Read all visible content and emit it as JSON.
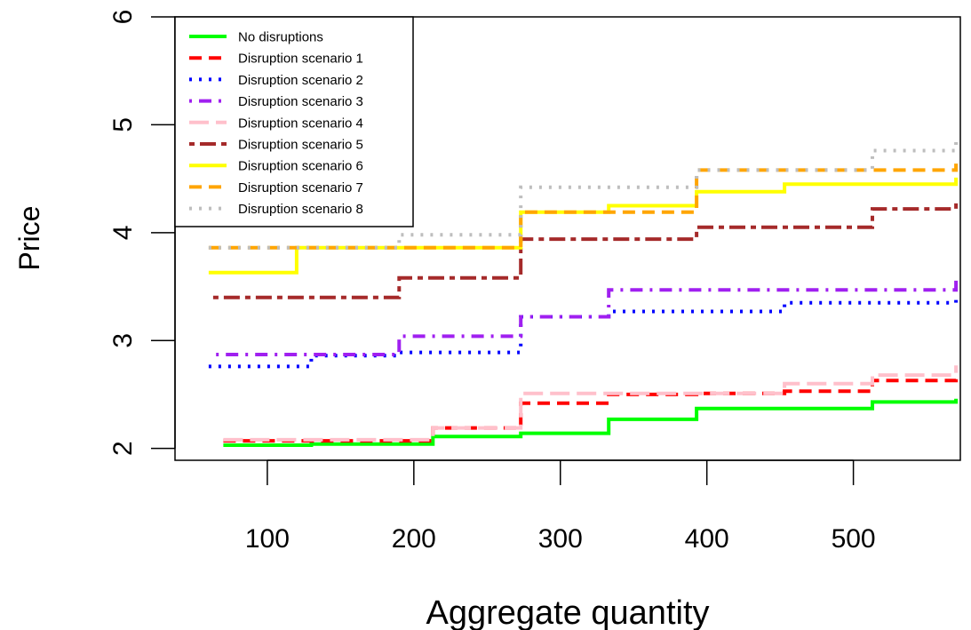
{
  "chart_data": {
    "type": "line",
    "step": true,
    "xlabel": "Aggregate quantity",
    "ylabel": "Price",
    "xlim": [
      37,
      573
    ],
    "ylim": [
      1.89,
      6.0
    ],
    "xticks": [
      100,
      200,
      300,
      400,
      500
    ],
    "yticks": [
      2,
      3,
      4,
      5,
      6
    ],
    "legend_position": "top-left",
    "series": [
      {
        "name": "No disruptions",
        "color": "#00ff00",
        "dash": "solid",
        "x": [
          70,
          130,
          213,
          273,
          333,
          393,
          513,
          570
        ],
        "y": [
          2.03,
          2.04,
          2.11,
          2.14,
          2.27,
          2.37,
          2.43,
          2.46
        ]
      },
      {
        "name": "Disruption scenario 1",
        "color": "#ff0000",
        "dash": "dashed",
        "x": [
          70,
          130,
          213,
          273,
          333,
          393,
          453,
          513,
          570
        ],
        "y": [
          2.07,
          2.07,
          2.19,
          2.42,
          2.5,
          2.51,
          2.53,
          2.63,
          2.67
        ]
      },
      {
        "name": "Disruption scenario 2",
        "color": "#0000ff",
        "dash": "dotted",
        "x": [
          60,
          130,
          190,
          273,
          333,
          453,
          570
        ],
        "y": [
          2.76,
          2.86,
          2.89,
          3.22,
          3.27,
          3.35,
          3.39
        ]
      },
      {
        "name": "Disruption scenario 3",
        "color": "#a020f0",
        "dash": "dotdash",
        "x": [
          65,
          190,
          273,
          333,
          570
        ],
        "y": [
          2.87,
          3.04,
          3.22,
          3.47,
          3.62
        ]
      },
      {
        "name": "Disruption scenario 4",
        "color": "#ffc0cb",
        "dash": "longdash",
        "x": [
          70,
          213,
          273,
          453,
          513,
          570
        ],
        "y": [
          2.08,
          2.19,
          2.51,
          2.6,
          2.68,
          2.77
        ]
      },
      {
        "name": "Disruption scenario 5",
        "color": "#a52a2a",
        "dash": "twodash",
        "x": [
          63,
          190,
          273,
          393,
          513,
          570
        ],
        "y": [
          3.4,
          3.58,
          3.94,
          4.05,
          4.22,
          4.32
        ]
      },
      {
        "name": "Disruption scenario 6",
        "color": "#ffff00",
        "dash": "solid",
        "x": [
          60,
          120,
          273,
          333,
          393,
          453,
          570
        ],
        "y": [
          3.63,
          3.86,
          4.19,
          4.25,
          4.38,
          4.45,
          4.51
        ]
      },
      {
        "name": "Disruption scenario 7",
        "color": "#ffa500",
        "dash": "dashed",
        "x": [
          60,
          273,
          393,
          570
        ],
        "y": [
          3.86,
          4.19,
          4.58,
          4.64
        ]
      },
      {
        "name": "Disruption scenario 8",
        "color": "#bebebe",
        "dash": "dotted",
        "x": [
          60,
          190,
          273,
          393,
          513,
          570
        ],
        "y": [
          3.86,
          3.98,
          4.42,
          4.58,
          4.76,
          4.85
        ]
      }
    ]
  }
}
